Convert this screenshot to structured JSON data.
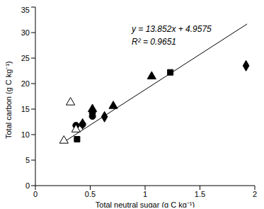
{
  "chart_data": {
    "type": "scatter",
    "x_label": "Total neutral sugar (g C kg⁻¹)",
    "y_label": "Total carbon (g C kg⁻¹)",
    "xlim": [
      0,
      2
    ],
    "xticks": [
      0,
      0.5,
      1,
      1.5,
      2
    ],
    "ylim": [
      0,
      35
    ],
    "yticks": [
      0,
      5,
      10,
      15,
      20,
      25,
      30,
      35
    ],
    "grid": false,
    "annotations": [
      "y = 13.852x + 4.9575",
      "R² = 0.9651"
    ],
    "series": [
      {
        "marker": "circle",
        "color": "#000000",
        "x": [
          0.37,
          0.43,
          0.52,
          0.52
        ],
        "values": [
          11.8,
          12.0,
          13.6,
          14.3
        ]
      },
      {
        "marker": "triangle-open",
        "color": "#000000",
        "x": [
          0.26,
          0.32,
          0.37
        ],
        "values": [
          8.8,
          16.3,
          11.0
        ]
      },
      {
        "marker": "square",
        "color": "#000000",
        "x": [
          0.38,
          1.23
        ],
        "values": [
          9.1,
          22.2
        ]
      },
      {
        "marker": "triangle",
        "color": "#000000",
        "x": [
          0.52,
          0.71,
          1.06
        ],
        "values": [
          15.0,
          15.6,
          21.4
        ]
      },
      {
        "marker": "diamond",
        "color": "#000000",
        "x": [
          0.43,
          0.63,
          1.92
        ],
        "values": [
          12.1,
          13.5,
          23.5
        ]
      }
    ],
    "trendline": {
      "type": "line",
      "color": "#000000",
      "x": [
        0.25,
        1.93
      ],
      "values": [
        8.42,
        31.69
      ]
    }
  }
}
